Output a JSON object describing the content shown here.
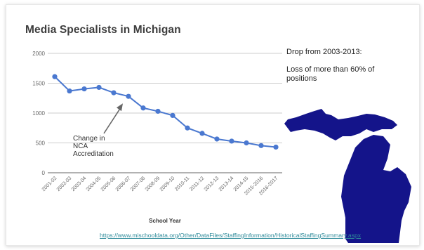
{
  "chart_data": {
    "type": "line",
    "title": "Media Specialists in Michigan",
    "xlabel": "School Year",
    "ylabel": "",
    "ylim": [
      0,
      2000
    ],
    "yticks": [
      0,
      500,
      1000,
      1500,
      2000
    ],
    "grid": true,
    "categories": [
      "2001-02",
      "2002-03",
      "2003-04",
      "2004-05",
      "2005-06",
      "2006-07",
      "2007-08",
      "2008-09",
      "2009-10",
      "2010-11",
      "2011-12",
      "2012-13",
      "2013-14",
      "2014-15",
      "2015-2016",
      "2016-2017"
    ],
    "series": [
      {
        "values": [
          1610,
          1370,
          1405,
          1430,
          1340,
          1280,
          1085,
          1030,
          960,
          750,
          660,
          565,
          530,
          500,
          455,
          430
        ],
        "color": "#4a78d0"
      }
    ],
    "annotations": [
      {
        "text": [
          "Change in",
          "NCA",
          "Accreditation"
        ],
        "points_to": "2006-07"
      }
    ]
  },
  "notes": {
    "drop_heading": "Drop from 2003-2013:",
    "loss_text": "Loss of more than 60% of positions"
  },
  "source_url": "https://www.mischooldata.org/Other/DataFiles/StaffingInformation/HistoricalStaffingSummary.aspx",
  "map": {
    "icon": "michigan-map",
    "color": "#14148a"
  }
}
